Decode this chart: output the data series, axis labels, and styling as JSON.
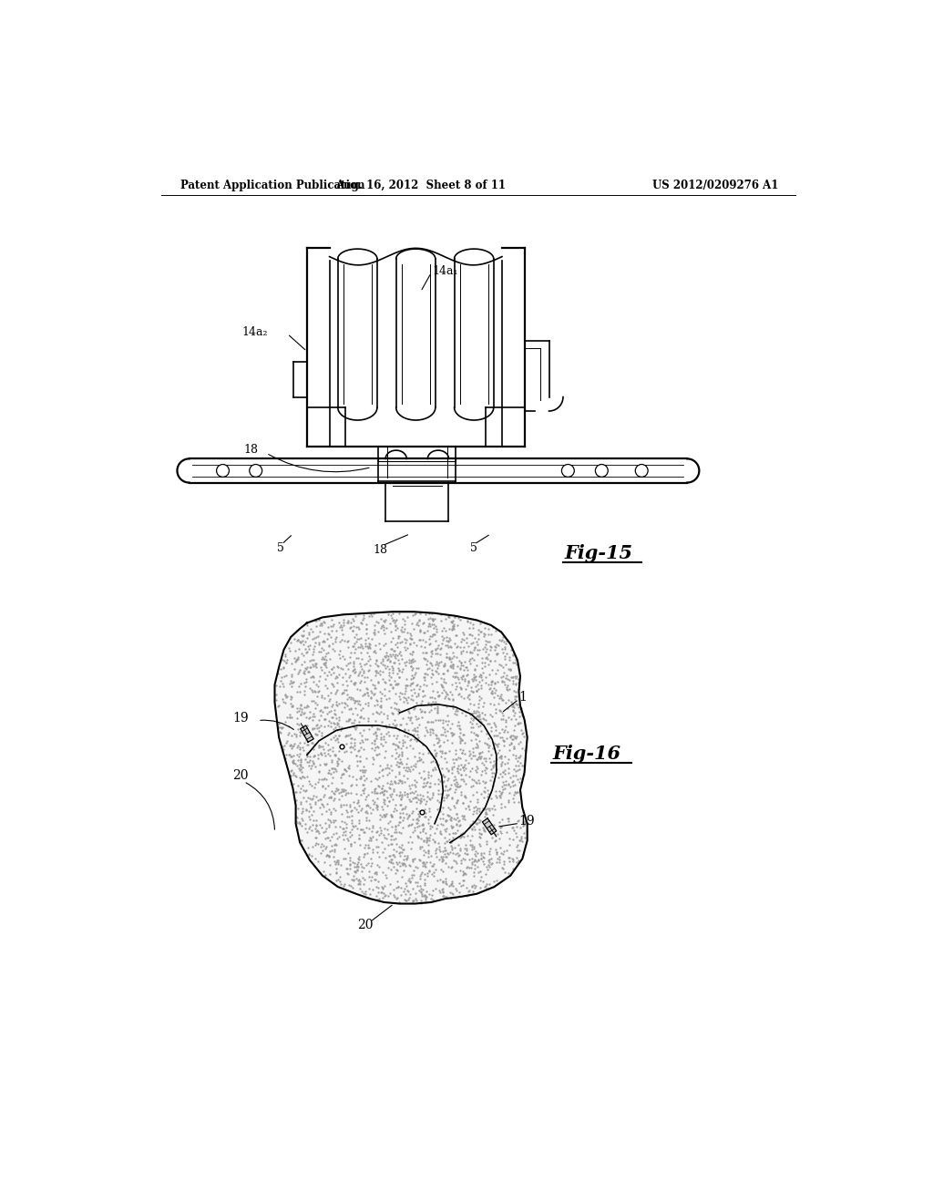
{
  "background_color": "#ffffff",
  "header_left": "Patent Application Publication",
  "header_mid": "Aug. 16, 2012  Sheet 8 of 11",
  "header_right": "US 2012/0209276 A1",
  "fig15_label": "Fig-15",
  "fig16_label": "Fig-16",
  "label_14a1": "14a₁",
  "label_14a2": "14a₂",
  "label_18": "18",
  "label_5": "5",
  "label_1": "1",
  "label_19": "19",
  "label_20": "20"
}
